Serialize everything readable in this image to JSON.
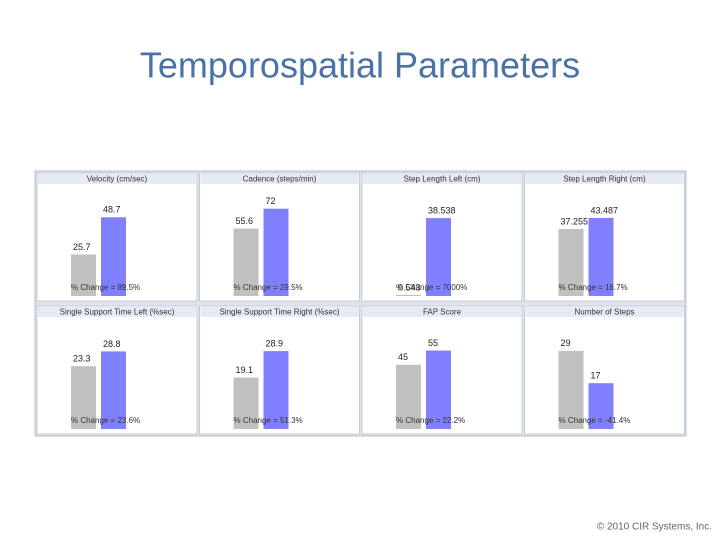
{
  "title": "Temporospatial Parameters",
  "footer": "© 2010 CIR Systems, Inc.",
  "chart_data": [
    {
      "type": "bar",
      "title": "Velocity (cm/sec)",
      "categories": [
        null,
        null
      ],
      "values": [
        25.7,
        48.7
      ],
      "colors": [
        "#c0c0c0",
        "#8080ff"
      ],
      "ylim": [
        0,
        60
      ],
      "annotation": "% Change = 89.5%"
    },
    {
      "type": "bar",
      "title": "Cadence (steps/min)",
      "categories": [
        null,
        null
      ],
      "values": [
        55.6,
        72
      ],
      "colors": [
        "#c0c0c0",
        "#8080ff"
      ],
      "ylim": [
        0,
        80
      ],
      "annotation": "% Change = 29.5%"
    },
    {
      "type": "bar",
      "title": "Step Length Left (cm)",
      "categories": [
        null,
        null
      ],
      "values": [
        0.543,
        38.538
      ],
      "colors": [
        "#c0c0c0",
        "#8080ff"
      ],
      "ylim": [
        0,
        48
      ],
      "annotation": "% Change = 7000%"
    },
    {
      "type": "bar",
      "title": "Step Length Right (cm)",
      "categories": [
        null,
        null
      ],
      "values": [
        37.255,
        43.487
      ],
      "colors": [
        "#c0c0c0",
        "#8080ff"
      ],
      "ylim": [
        0,
        54
      ],
      "annotation": "% Change = 16.7%"
    },
    {
      "type": "bar",
      "title": "Single Support Time Left (%sec)",
      "categories": [
        null,
        null
      ],
      "values": [
        23.3,
        28.8
      ],
      "colors": [
        "#c0c0c0",
        "#8080ff"
      ],
      "ylim": [
        0,
        36
      ],
      "annotation": "% Change = 23.6%"
    },
    {
      "type": "bar",
      "title": "Single Support Time Right (%sec)",
      "categories": [
        null,
        null
      ],
      "values": [
        19.1,
        28.9
      ],
      "colors": [
        "#c0c0c0",
        "#8080ff"
      ],
      "ylim": [
        0,
        36
      ],
      "annotation": "% Change = 51.3%"
    },
    {
      "type": "bar",
      "title": "FAP Score",
      "categories": [
        null,
        null
      ],
      "values": [
        45,
        55
      ],
      "colors": [
        "#c0c0c0",
        "#8080ff"
      ],
      "ylim": [
        0,
        68
      ],
      "annotation": "% Change = 22.2%"
    },
    {
      "type": "bar",
      "title": "Number of Steps",
      "categories": [
        null,
        null
      ],
      "values": [
        29,
        17
      ],
      "colors": [
        "#c0c0c0",
        "#8080ff"
      ],
      "ylim": [
        0,
        36
      ],
      "annotation": "% Change = -41.4%"
    }
  ]
}
